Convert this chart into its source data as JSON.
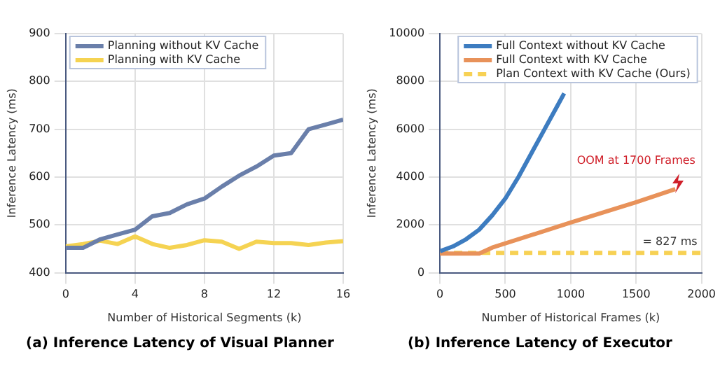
{
  "chart_data": [
    {
      "type": "line",
      "title": "(a) Inference Latency of Visual Planner",
      "xlabel": "Number of Historical Segments (k)",
      "ylabel": "Inference Latency (ms)",
      "x": [
        0,
        1,
        2,
        3,
        4,
        5,
        6,
        7,
        8,
        9,
        10,
        11,
        12,
        13,
        14,
        15,
        16
      ],
      "series": [
        {
          "name": "Planning without KV Cache",
          "color": "#6a7faa",
          "values": [
            452,
            452,
            470,
            480,
            490,
            518,
            525,
            543,
            555,
            580,
            603,
            622,
            645,
            650,
            700,
            710,
            720
          ]
        },
        {
          "name": "Planning with KV Cache",
          "color": "#f5d352",
          "values": [
            455,
            460,
            467,
            460,
            476,
            460,
            452,
            458,
            468,
            465,
            450,
            465,
            462,
            462,
            458,
            463,
            466
          ]
        }
      ],
      "xlim": [
        0,
        16
      ],
      "xticks": [
        0,
        4,
        8,
        12,
        16
      ],
      "ylim": [
        400,
        900
      ],
      "yticks": [
        400,
        500,
        600,
        700,
        800,
        900
      ],
      "grid": true,
      "legend": "top left",
      "marker": "none"
    },
    {
      "type": "line",
      "title": "(b) Inference Latency of Executor",
      "xlabel": "Number of Historical Frames (k)",
      "ylabel": "Inference Latency (ms)",
      "series": [
        {
          "name": "Full Context without KV Cache",
          "color": "#3d7cc0",
          "x": [
            0,
            100,
            200,
            300,
            400,
            500,
            600,
            700,
            800,
            900,
            950
          ],
          "values": [
            900,
            1100,
            1400,
            1800,
            2400,
            3100,
            4000,
            5000,
            6000,
            7000,
            7500
          ]
        },
        {
          "name": "Full Context with KV Cache",
          "color": "#e8925a",
          "x": [
            0,
            300,
            400,
            1000,
            1500,
            1800
          ],
          "values": [
            800,
            800,
            1050,
            2100,
            2950,
            3500
          ]
        },
        {
          "name": "Plan Context with KV Cache (Ours)",
          "color": "#f7d154",
          "line_style": "dashed",
          "x": [
            0,
            2000
          ],
          "values": [
            827,
            827
          ]
        }
      ],
      "annotations": [
        "OOM at 1700 Frames",
        {
          "text": "= 827 ms",
          "x": 2000,
          "y": 827
        }
      ],
      "xlim": [
        0,
        2000
      ],
      "xticks": [
        0,
        500,
        1000,
        1500,
        2000
      ],
      "ylim": [
        0,
        10000
      ],
      "yticks": [
        0,
        2000,
        4000,
        6000,
        8000,
        10000
      ],
      "grid": true,
      "legend": "top right",
      "marker": "none"
    }
  ]
}
